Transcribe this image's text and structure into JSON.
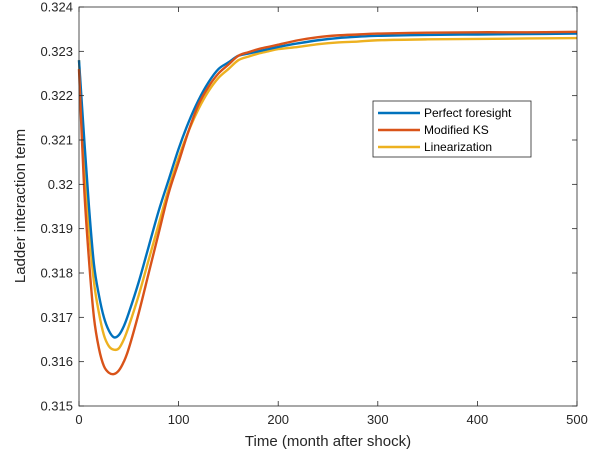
{
  "chart_data": {
    "type": "line",
    "xlabel": "Time (month after shock)",
    "ylabel": "Ladder interaction term",
    "xlim": [
      0,
      500
    ],
    "ylim": [
      0.315,
      0.324
    ],
    "xticks": [
      0,
      100,
      200,
      300,
      400,
      500
    ],
    "yticks": [
      0.315,
      0.316,
      0.317,
      0.318,
      0.319,
      0.32,
      0.321,
      0.322,
      0.323,
      0.324
    ],
    "ytick_labels": [
      "0.315",
      "0.316",
      "0.317",
      "0.318",
      "0.319",
      "0.32",
      "0.321",
      "0.322",
      "0.323",
      "0.324"
    ],
    "legend_position": "upper-right-inside",
    "grid": false,
    "series": [
      {
        "name": "Perfect foresight",
        "color": "#0072BD",
        "x": [
          0,
          5,
          10,
          15,
          20,
          25,
          30,
          35,
          40,
          45,
          50,
          60,
          70,
          80,
          90,
          100,
          110,
          120,
          130,
          140,
          150,
          160,
          170,
          180,
          190,
          200,
          220,
          240,
          260,
          280,
          300,
          350,
          400,
          450,
          500
        ],
        "y": [
          0.3228,
          0.3211,
          0.3195,
          0.3182,
          0.3175,
          0.317,
          0.3167,
          0.31655,
          0.3166,
          0.3168,
          0.3171,
          0.3178,
          0.3186,
          0.3194,
          0.3201,
          0.3208,
          0.3214,
          0.3219,
          0.3223,
          0.3226,
          0.32275,
          0.3229,
          0.32295,
          0.323,
          0.32305,
          0.3231,
          0.32318,
          0.32325,
          0.3233,
          0.32333,
          0.32335,
          0.32337,
          0.32338,
          0.32339,
          0.3234
        ]
      },
      {
        "name": "Modified KS",
        "color": "#D95319",
        "x": [
          0,
          5,
          10,
          15,
          20,
          25,
          30,
          35,
          40,
          45,
          50,
          60,
          70,
          80,
          90,
          100,
          110,
          120,
          130,
          140,
          150,
          160,
          170,
          180,
          190,
          200,
          220,
          240,
          260,
          280,
          300,
          350,
          400,
          450,
          500
        ],
        "y": [
          0.3226,
          0.32,
          0.3183,
          0.317,
          0.3163,
          0.3159,
          0.31575,
          0.31572,
          0.3158,
          0.316,
          0.3163,
          0.3171,
          0.318,
          0.3189,
          0.3198,
          0.3205,
          0.3212,
          0.3218,
          0.3222,
          0.3225,
          0.3227,
          0.3229,
          0.32298,
          0.32305,
          0.3231,
          0.32315,
          0.32325,
          0.32332,
          0.32336,
          0.32338,
          0.3234,
          0.32342,
          0.32343,
          0.32343,
          0.32344
        ]
      },
      {
        "name": "Linearization",
        "color": "#EDB120",
        "x": [
          0,
          5,
          10,
          15,
          20,
          25,
          30,
          35,
          40,
          45,
          50,
          60,
          70,
          80,
          90,
          100,
          110,
          120,
          130,
          140,
          150,
          160,
          170,
          180,
          190,
          200,
          220,
          240,
          260,
          280,
          300,
          350,
          400,
          450,
          500
        ],
        "y": [
          0.3228,
          0.3207,
          0.319,
          0.3178,
          0.3171,
          0.3166,
          0.31635,
          0.31627,
          0.3163,
          0.3165,
          0.3168,
          0.3175,
          0.3183,
          0.3191,
          0.3199,
          0.3206,
          0.3212,
          0.3217,
          0.3221,
          0.3224,
          0.3226,
          0.3228,
          0.32288,
          0.32295,
          0.323,
          0.32305,
          0.3231,
          0.32316,
          0.3232,
          0.32322,
          0.32325,
          0.32327,
          0.32328,
          0.32329,
          0.3233
        ]
      }
    ]
  }
}
